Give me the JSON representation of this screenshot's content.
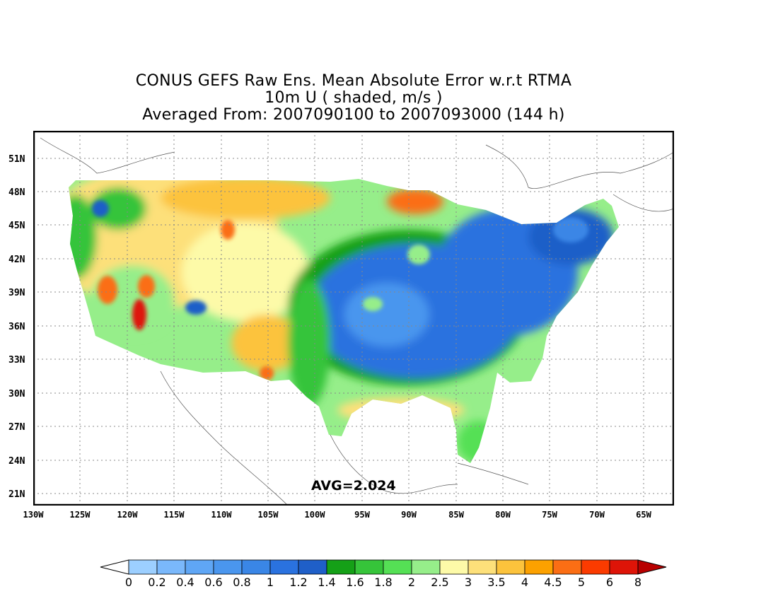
{
  "title": {
    "line1": "CONUS GEFS Raw Ens. Mean Absolute Error w.r.t RTMA",
    "line2": "10m U ( shaded, m/s )",
    "line3": "Averaged From: 2007090100 to 2007093000 (144 h)"
  },
  "average_label": "AVG=2.024",
  "lat_labels": [
    "51N",
    "48N",
    "45N",
    "42N",
    "39N",
    "36N",
    "33N",
    "30N",
    "27N",
    "24N",
    "21N"
  ],
  "lon_labels": [
    "130W",
    "125W",
    "120W",
    "115W",
    "110W",
    "105W",
    "100W",
    "95W",
    "90W",
    "85W",
    "80W",
    "75W",
    "70W",
    "65W"
  ],
  "colorbar": {
    "labels": [
      "0",
      "0.2",
      "0.4",
      "0.6",
      "0.8",
      "1",
      "1.2",
      "1.4",
      "1.6",
      "1.8",
      "2",
      "2.5",
      "3",
      "3.5",
      "4",
      "4.5",
      "5",
      "6",
      "8"
    ],
    "colors": [
      "#9ccfff",
      "#7ab8fb",
      "#5fa6f5",
      "#4a96ee",
      "#3a86e6",
      "#2a72df",
      "#1f5fc8",
      "#15a017",
      "#36c43a",
      "#55e055",
      "#96ee8a",
      "#fdfaa8",
      "#fde07a",
      "#fcc33c",
      "#fca100",
      "#fb6e14",
      "#fb3b00",
      "#de1408",
      "#b80000"
    ],
    "under_color": "#ffffff",
    "over_color": "#b80000"
  }
}
